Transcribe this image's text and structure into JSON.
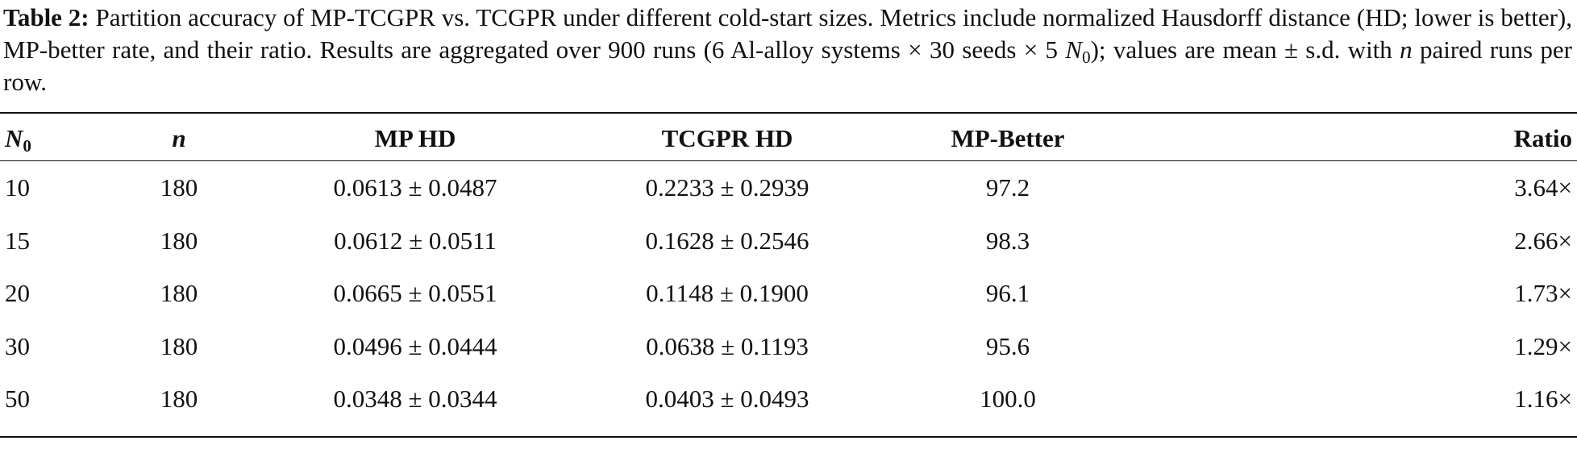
{
  "caption": {
    "label": "Table 2:",
    "text_1": "Partition accuracy of MP-TCGPR vs. TCGPR under different cold-start sizes. Metrics include normalized Hausdorff distance (HD; lower is better), MP-better rate, and their ratio. Results are aggregated over 900 runs (6 Al-alloy systems × 30 seeds × 5 ",
    "var_1": "N",
    "sub_1": "0",
    "text_2": "); values are mean ± s.d. with ",
    "var_2": "n",
    "text_3": " paired runs per row."
  },
  "table": {
    "header": {
      "n0_var": "N",
      "n0_sub": "0",
      "cols": [
        "n",
        "MP HD",
        "TCGPR HD",
        "MP-Better",
        "Ratio"
      ]
    },
    "rows": [
      [
        "10",
        "180",
        "0.0613 ± 0.0487",
        "0.2233 ± 0.2939",
        "97.2",
        "3.64×"
      ],
      [
        "15",
        "180",
        "0.0612 ± 0.0511",
        "0.1628 ± 0.2546",
        "98.3",
        "2.66×"
      ],
      [
        "20",
        "180",
        "0.0665 ± 0.0551",
        "0.1148 ± 0.1900",
        "96.1",
        "1.73×"
      ],
      [
        "30",
        "180",
        "0.0496 ± 0.0444",
        "0.0638 ± 0.1193",
        "95.6",
        "1.29×"
      ],
      [
        "50",
        "180",
        "0.0348 ± 0.0344",
        "0.0403 ± 0.0493",
        "100.0",
        "1.16×"
      ]
    ]
  }
}
